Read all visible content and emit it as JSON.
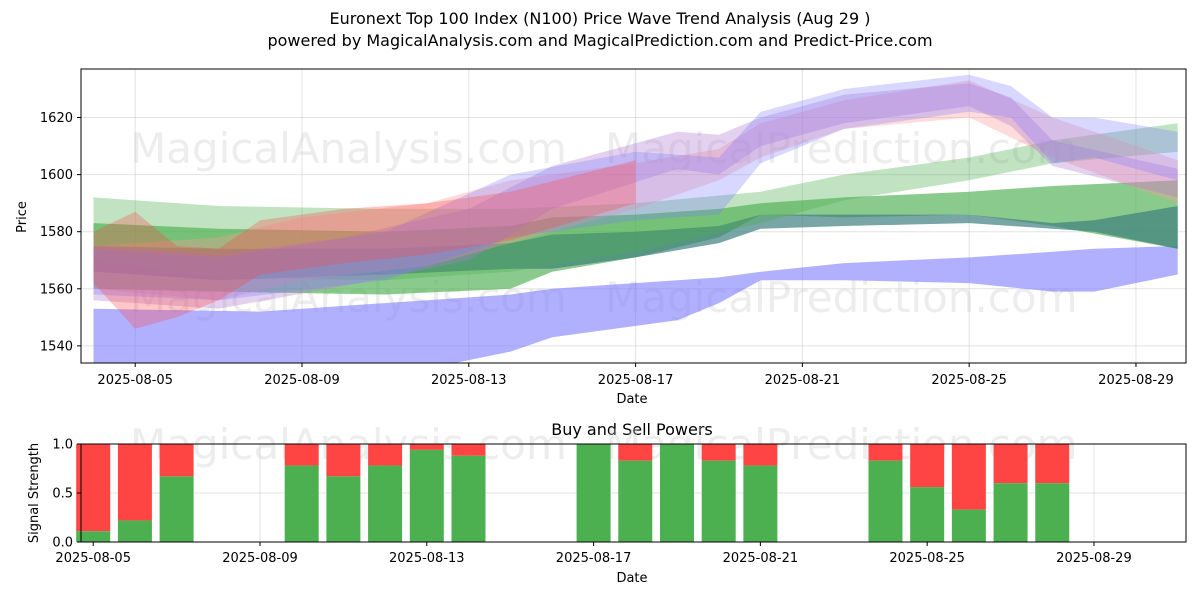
{
  "title": "Euronext Top 100 Index (N100) Price Wave Trend Analysis (Aug 29 )",
  "subtitle": "powered by MagicalAnalysis.com and MagicalPrediction.com and Predict-Price.com",
  "watermarks": [
    "MagicalAnalysis.com",
    "MagicalPrediction.com",
    "MagicalAnalysis.com",
    "MagicalPrediction.com",
    "MagicalAnalysis.com",
    "MagicalPrediction.com"
  ],
  "colors": {
    "green": "#4caf50",
    "red": "#ff4444",
    "blue": "#7b7bff",
    "pink": "#ff9999",
    "purple": "#b07bd0",
    "teal": "#3f7f7f"
  },
  "chart_data": [
    {
      "type": "area",
      "xlabel": "Date",
      "ylabel": "Price",
      "x_ticks": [
        "2025-08-05",
        "2025-08-09",
        "2025-08-13",
        "2025-08-17",
        "2025-08-21",
        "2025-08-25",
        "2025-08-29"
      ],
      "y_ticks": [
        1540,
        1560,
        1580,
        1600,
        1620
      ],
      "ylim": [
        1534,
        1637
      ],
      "xlim": [
        "2025-08-03.7",
        "2025-08-30.2"
      ],
      "grid": true,
      "bands": [
        {
          "color": "blue",
          "opacity": 0.6,
          "x": [
            "2025-08-04",
            "2025-08-08",
            "2025-08-12",
            "2025-08-14",
            "2025-08-15",
            "2025-08-18",
            "2025-08-19",
            "2025-08-20",
            "2025-08-22",
            "2025-08-25",
            "2025-08-27",
            "2025-08-28",
            "2025-08-30"
          ],
          "upper": [
            1553,
            1552,
            1556,
            1558,
            1560,
            1563,
            1564,
            1566,
            1569,
            1571,
            1573,
            1574,
            1575
          ],
          "lower": [
            1533,
            1530,
            1532,
            1538,
            1543,
            1549,
            1555,
            1563,
            1563,
            1562,
            1559,
            1559,
            1565
          ]
        },
        {
          "color": "green",
          "opacity": 0.65,
          "x": [
            "2025-08-04",
            "2025-08-07",
            "2025-08-11",
            "2025-08-14",
            "2025-08-15",
            "2025-08-17",
            "2025-08-19",
            "2025-08-20",
            "2025-08-22",
            "2025-08-25",
            "2025-08-27",
            "2025-08-30"
          ],
          "upper": [
            1583,
            1581,
            1580,
            1582,
            1585,
            1586,
            1588,
            1590,
            1592,
            1594,
            1596,
            1598
          ],
          "lower": [
            1560,
            1559,
            1558,
            1560,
            1566,
            1571,
            1578,
            1586,
            1585,
            1586,
            1582,
            1574
          ]
        },
        {
          "color": "teal",
          "opacity": 0.7,
          "x": [
            "2025-08-04",
            "2025-08-07",
            "2025-08-11",
            "2025-08-14",
            "2025-08-15",
            "2025-08-17",
            "2025-08-19",
            "2025-08-20",
            "2025-08-22",
            "2025-08-25",
            "2025-08-27",
            "2025-08-28",
            "2025-08-30"
          ],
          "upper": [
            1575,
            1574,
            1574,
            1576,
            1579,
            1580,
            1582,
            1586,
            1586,
            1586,
            1583,
            1584,
            1589
          ],
          "lower": [
            1566,
            1563,
            1565,
            1567,
            1567,
            1571,
            1576,
            1581,
            1582,
            1583,
            1581,
            1580,
            1574
          ]
        },
        {
          "color": "green",
          "opacity": 0.35,
          "x": [
            "2025-08-04",
            "2025-08-07",
            "2025-08-11",
            "2025-08-14",
            "2025-08-17",
            "2025-08-20",
            "2025-08-22",
            "2025-08-25",
            "2025-08-27",
            "2025-08-30"
          ],
          "upper": [
            1592,
            1589,
            1588,
            1588,
            1590,
            1594,
            1600,
            1606,
            1612,
            1618
          ],
          "lower": [
            1570,
            1564,
            1563,
            1566,
            1573,
            1583,
            1591,
            1598,
            1604,
            1608
          ]
        },
        {
          "color": "pink",
          "opacity": 0.35,
          "x": [
            "2025-08-04",
            "2025-08-07",
            "2025-08-09",
            "2025-08-12",
            "2025-08-14",
            "2025-08-17",
            "2025-08-19",
            "2025-08-20",
            "2025-08-22",
            "2025-08-25",
            "2025-08-27",
            "2025-08-30"
          ],
          "upper": [
            1575,
            1578,
            1585,
            1590,
            1598,
            1604,
            1609,
            1618,
            1626,
            1633,
            1620,
            1605
          ],
          "lower": [
            1560,
            1556,
            1563,
            1568,
            1576,
            1588,
            1598,
            1606,
            1616,
            1620,
            1606,
            1590
          ]
        },
        {
          "color": "purple",
          "opacity": 0.35,
          "x": [
            "2025-08-04",
            "2025-08-07",
            "2025-08-10",
            "2025-08-13",
            "2025-08-15",
            "2025-08-18",
            "2025-08-19",
            "2025-08-20",
            "2025-08-22",
            "2025-08-25",
            "2025-08-26",
            "2025-08-27",
            "2025-08-30"
          ],
          "upper": [
            1575,
            1572,
            1578,
            1588,
            1603,
            1615,
            1614,
            1620,
            1628,
            1632,
            1627,
            1612,
            1602
          ],
          "lower": [
            1556,
            1553,
            1561,
            1570,
            1588,
            1602,
            1600,
            1610,
            1618,
            1624,
            1617,
            1603,
            1592
          ]
        },
        {
          "color": "blue",
          "opacity": 0.3,
          "x": [
            "2025-08-04",
            "2025-08-07",
            "2025-08-11",
            "2025-08-14",
            "2025-08-17",
            "2025-08-19",
            "2025-08-20",
            "2025-08-22",
            "2025-08-25",
            "2025-08-26",
            "2025-08-27",
            "2025-08-28",
            "2025-08-30"
          ],
          "upper": [
            1574,
            1571,
            1580,
            1600,
            1608,
            1606,
            1622,
            1630,
            1635,
            1631,
            1620,
            1620,
            1615
          ],
          "lower": [
            1558,
            1556,
            1563,
            1578,
            1584,
            1586,
            1604,
            1616,
            1622,
            1620,
            1604,
            1606,
            1598
          ]
        },
        {
          "color": "red",
          "opacity": 0.3,
          "x": [
            "2025-08-04",
            "2025-08-05",
            "2025-08-06",
            "2025-08-07",
            "2025-08-08",
            "2025-08-10",
            "2025-08-12",
            "2025-08-14",
            "2025-08-17"
          ],
          "upper": [
            1580,
            1587,
            1575,
            1574,
            1584,
            1588,
            1590,
            1594,
            1605
          ],
          "lower": [
            1562,
            1546,
            1550,
            1556,
            1565,
            1569,
            1572,
            1577,
            1590
          ]
        }
      ]
    },
    {
      "type": "bar",
      "title": "Buy and Sell Powers",
      "xlabel": "Date",
      "ylabel": "Signal Strength",
      "x_ticks": [
        "2025-08-05",
        "2025-08-09",
        "2025-08-13",
        "2025-08-17",
        "2025-08-21",
        "2025-08-25",
        "2025-08-29"
      ],
      "y_ticks": [
        "0.0",
        "0.5",
        "1.0"
      ],
      "ylim": [
        0,
        1
      ],
      "series": [
        {
          "name": "buy",
          "color": "green"
        },
        {
          "name": "sell",
          "color": "red"
        }
      ],
      "x": [
        "2025-08-05",
        "2025-08-06",
        "2025-08-07",
        "2025-08-10",
        "2025-08-11",
        "2025-08-12",
        "2025-08-13",
        "2025-08-14",
        "2025-08-17",
        "2025-08-18",
        "2025-08-19",
        "2025-08-20",
        "2025-08-21",
        "2025-08-24",
        "2025-08-25",
        "2025-08-26",
        "2025-08-27",
        "2025-08-28"
      ],
      "buy": [
        0.11,
        0.22,
        0.67,
        0.78,
        0.67,
        0.78,
        0.94,
        0.88,
        1.0,
        0.83,
        1.0,
        0.83,
        0.78,
        0.83,
        0.56,
        0.33,
        0.6,
        0.6
      ]
    }
  ]
}
